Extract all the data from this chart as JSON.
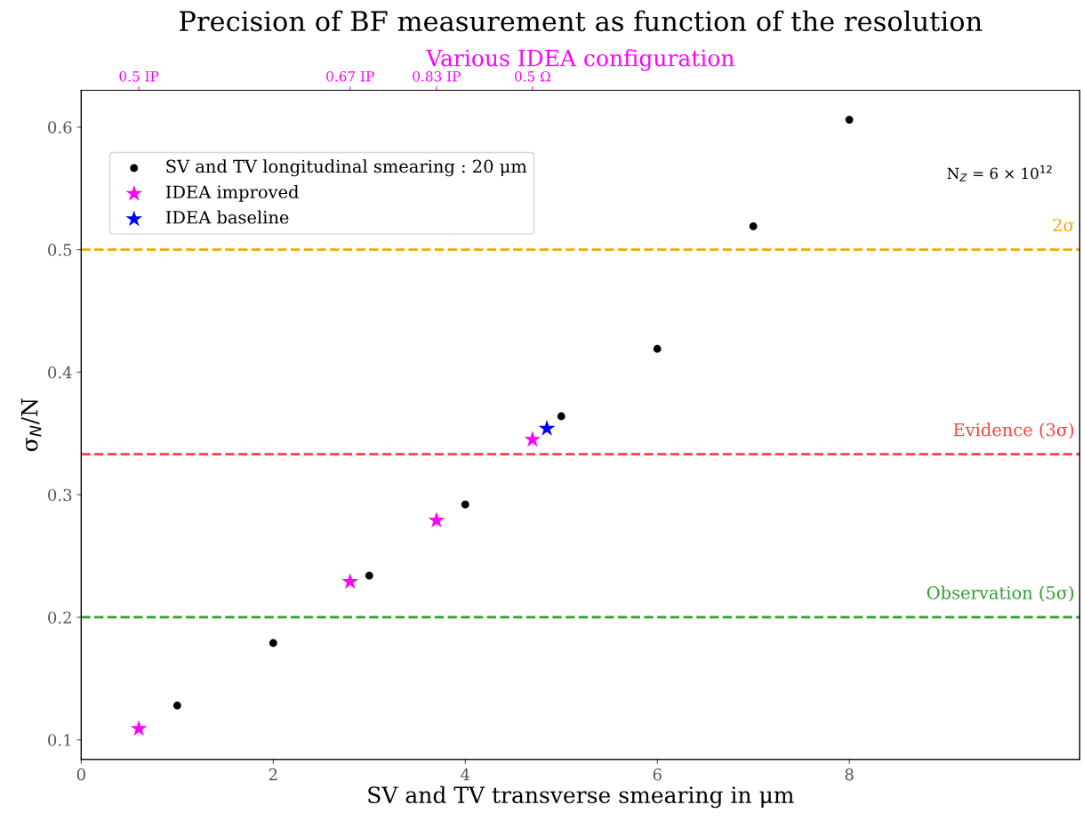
{
  "chart_data": {
    "type": "scatter",
    "title": "Precision of BF measurement as function of the resolution",
    "xlabel": "SV and TV transverse smearing in μm",
    "ylabel": "σ$_{N}$/N",
    "x2label": "Various IDEA configuration",
    "xlim": [
      0,
      10.4
    ],
    "ylim": [
      0.084,
      0.63
    ],
    "xticks": [
      0,
      2,
      4,
      6,
      8
    ],
    "yticks": [
      0.1,
      0.2,
      0.3,
      0.4,
      0.5,
      0.6
    ],
    "series": [
      {
        "name": "SV and TV longitudinal smearing : 20 μm",
        "color": "#000000",
        "marker": "circle",
        "x": [
          1,
          2,
          3,
          4,
          5,
          6,
          7,
          8
        ],
        "values": [
          0.128,
          0.179,
          0.234,
          0.292,
          0.364,
          0.419,
          0.519,
          0.606
        ]
      },
      {
        "name": "IDEA improved",
        "color": "#ff00ff",
        "marker": "star",
        "x": [
          0.6,
          2.8,
          3.7,
          4.7
        ],
        "values": [
          0.109,
          0.229,
          0.279,
          0.345
        ]
      },
      {
        "name": "IDEA baseline",
        "color": "#0000ff",
        "marker": "star",
        "x": [
          4.85
        ],
        "values": [
          0.354
        ]
      }
    ],
    "ref_lines": [
      {
        "axis": "y",
        "value": 0.5,
        "label": "2σ",
        "color": "#ffa500",
        "line_style": "dashed"
      },
      {
        "axis": "y",
        "value": 0.333,
        "label": "Evidence (3σ)",
        "color": "#ff4040",
        "line_style": "dashed"
      },
      {
        "axis": "y",
        "value": 0.2,
        "label": "Observation (5σ)",
        "color": "#2ca02c",
        "line_style": "dashed"
      }
    ],
    "annotations": [
      "N$_{Z}$ = 6 × 10$^{12}$",
      "0.5 IP",
      "0.67 IP",
      "0.83 IP",
      "0.5 Ω"
    ],
    "legend": "top left",
    "grid": false
  }
}
